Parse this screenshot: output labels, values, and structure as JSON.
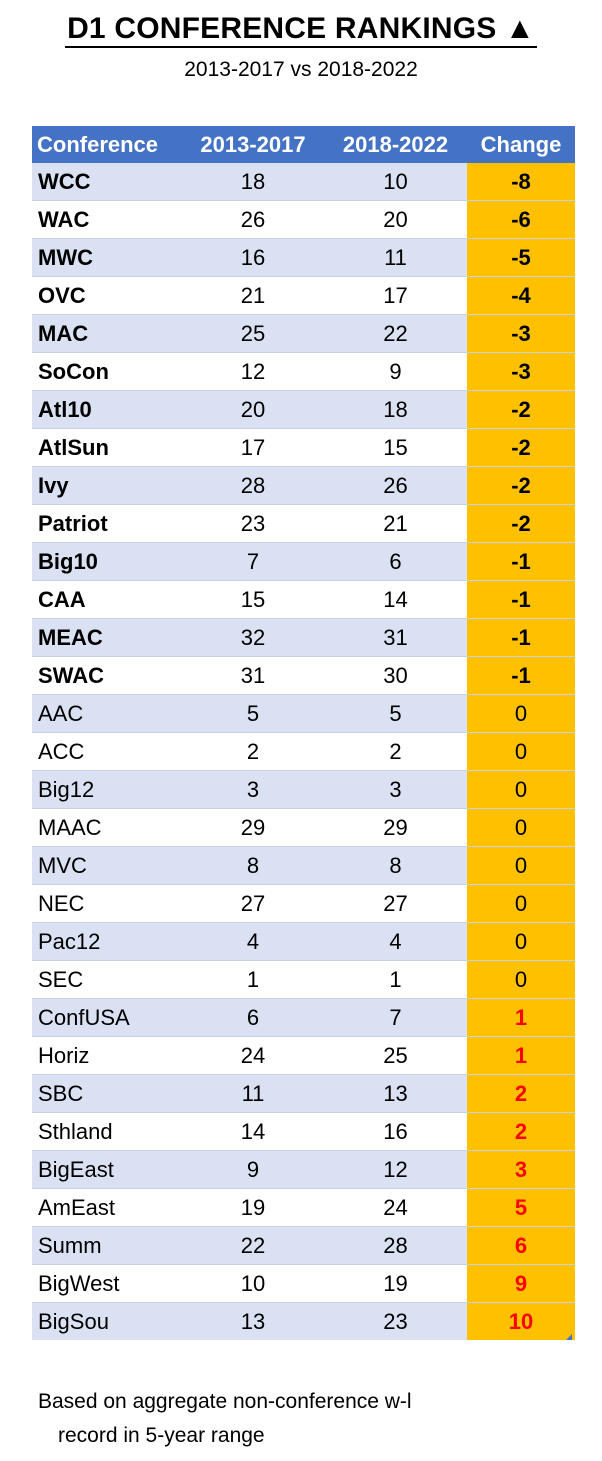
{
  "chart_data": {
    "type": "table",
    "title": "D1 CONFERENCE RANKINGS ▲",
    "subtitle": "2013-2017 vs 2018-2022",
    "columns": [
      "Conference",
      "2013-2017",
      "2018-2022",
      "Change"
    ],
    "rows": [
      {
        "conf": "WCC",
        "a": 18,
        "b": 10,
        "change": -8
      },
      {
        "conf": "WAC",
        "a": 26,
        "b": 20,
        "change": -6
      },
      {
        "conf": "MWC",
        "a": 16,
        "b": 11,
        "change": -5
      },
      {
        "conf": "OVC",
        "a": 21,
        "b": 17,
        "change": -4
      },
      {
        "conf": "MAC",
        "a": 25,
        "b": 22,
        "change": -3
      },
      {
        "conf": "SoCon",
        "a": 12,
        "b": 9,
        "change": -3
      },
      {
        "conf": "Atl10",
        "a": 20,
        "b": 18,
        "change": -2
      },
      {
        "conf": "AtlSun",
        "a": 17,
        "b": 15,
        "change": -2
      },
      {
        "conf": "Ivy",
        "a": 28,
        "b": 26,
        "change": -2
      },
      {
        "conf": "Patriot",
        "a": 23,
        "b": 21,
        "change": -2
      },
      {
        "conf": "Big10",
        "a": 7,
        "b": 6,
        "change": -1
      },
      {
        "conf": "CAA",
        "a": 15,
        "b": 14,
        "change": -1
      },
      {
        "conf": "MEAC",
        "a": 32,
        "b": 31,
        "change": -1
      },
      {
        "conf": "SWAC",
        "a": 31,
        "b": 30,
        "change": -1
      },
      {
        "conf": "AAC",
        "a": 5,
        "b": 5,
        "change": 0
      },
      {
        "conf": "ACC",
        "a": 2,
        "b": 2,
        "change": 0
      },
      {
        "conf": "Big12",
        "a": 3,
        "b": 3,
        "change": 0
      },
      {
        "conf": "MAAC",
        "a": 29,
        "b": 29,
        "change": 0
      },
      {
        "conf": "MVC",
        "a": 8,
        "b": 8,
        "change": 0
      },
      {
        "conf": "NEC",
        "a": 27,
        "b": 27,
        "change": 0
      },
      {
        "conf": "Pac12",
        "a": 4,
        "b": 4,
        "change": 0
      },
      {
        "conf": "SEC",
        "a": 1,
        "b": 1,
        "change": 0
      },
      {
        "conf": "ConfUSA",
        "a": 6,
        "b": 7,
        "change": 1
      },
      {
        "conf": "Horiz",
        "a": 24,
        "b": 25,
        "change": 1
      },
      {
        "conf": "SBC",
        "a": 11,
        "b": 13,
        "change": 2
      },
      {
        "conf": "Sthland",
        "a": 14,
        "b": 16,
        "change": 2
      },
      {
        "conf": "BigEast",
        "a": 9,
        "b": 12,
        "change": 3
      },
      {
        "conf": "AmEast",
        "a": 19,
        "b": 24,
        "change": 5
      },
      {
        "conf": "Summ",
        "a": 22,
        "b": 28,
        "change": 6
      },
      {
        "conf": "BigWest",
        "a": 10,
        "b": 19,
        "change": 9
      },
      {
        "conf": "BigSou",
        "a": 13,
        "b": 23,
        "change": 10
      }
    ],
    "colors": {
      "header_bg": "#4472c4",
      "band_bg": "#d9e1f2",
      "change_bg": "#ffc000",
      "positive_text": "#ff0000"
    }
  },
  "footnote": {
    "line1": "Based on aggregate non-conference w-l",
    "line2": "record in 5-year range"
  }
}
